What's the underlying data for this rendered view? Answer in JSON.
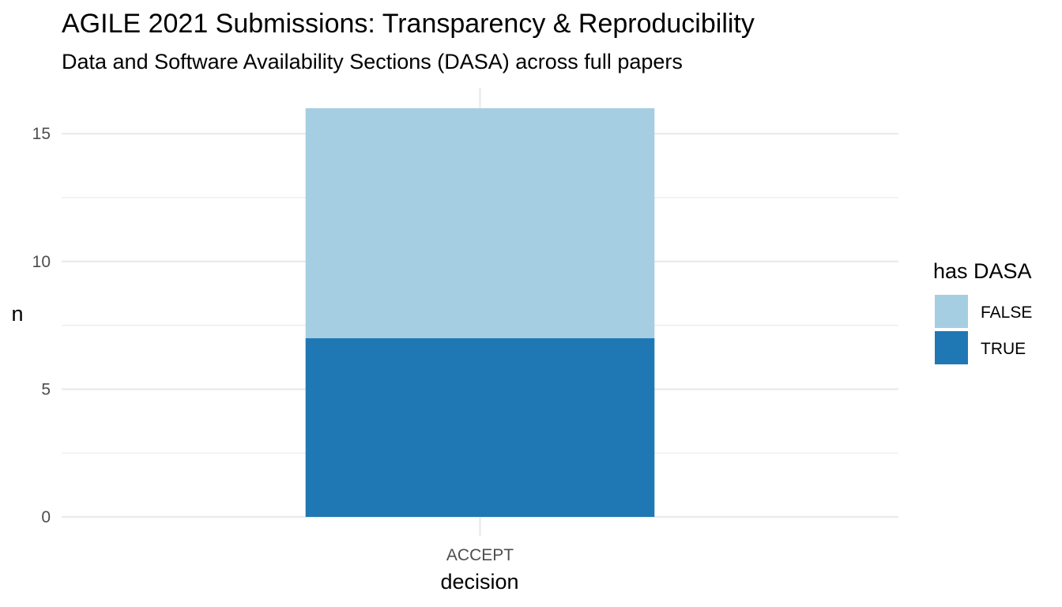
{
  "chart_data": {
    "type": "bar",
    "stacked": true,
    "title": "AGILE 2021 Submissions: Transparency & Reproducibility",
    "subtitle": "Data and Software Availability Sections (DASA) across full papers",
    "xlabel": "decision",
    "ylabel": "n",
    "categories": [
      "ACCEPT"
    ],
    "series": [
      {
        "name": "TRUE",
        "values": [
          7
        ],
        "color": "#1f78b4"
      },
      {
        "name": "FALSE",
        "values": [
          9
        ],
        "color": "#a6cee3"
      }
    ],
    "ylim": [
      0,
      16.8
    ],
    "yticks": [
      0,
      5,
      10,
      15
    ],
    "grid": true,
    "legend": {
      "title": "has DASA",
      "position": "right",
      "entries": [
        "FALSE",
        "TRUE"
      ]
    }
  }
}
